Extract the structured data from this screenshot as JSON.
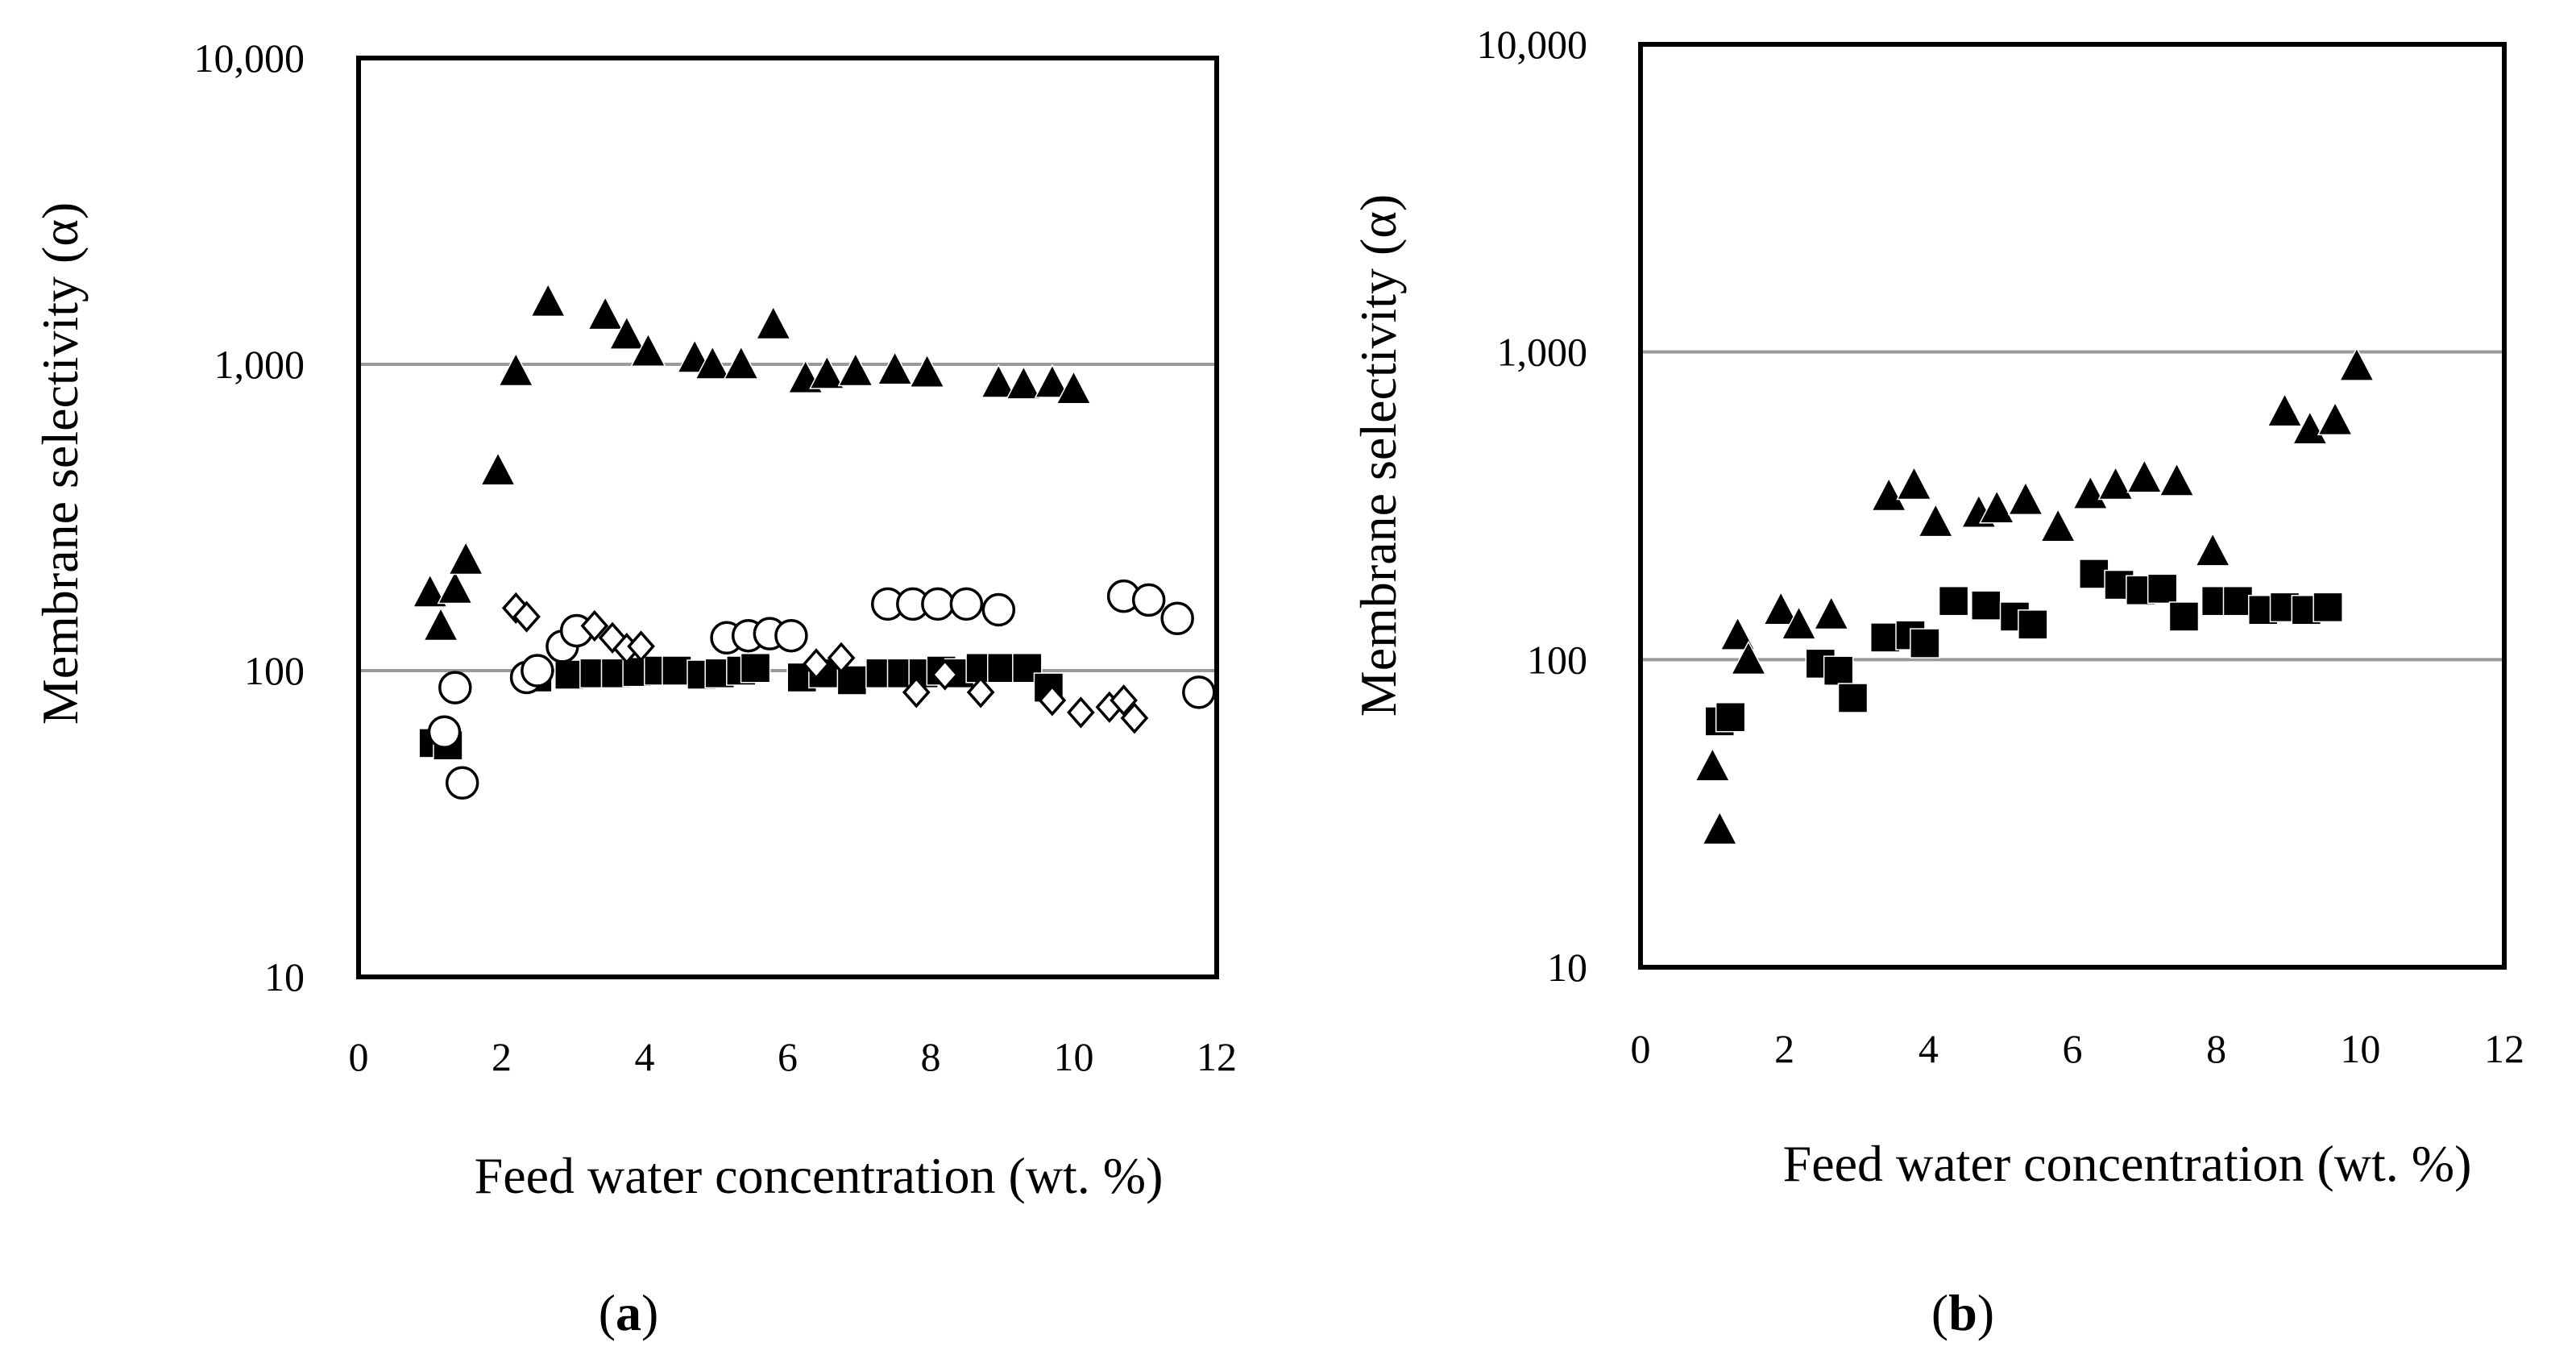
{
  "figure": {
    "background": "#ffffff",
    "gridline_color": "#9a9a9a",
    "marker_color": "#000000"
  },
  "panels": [
    {
      "id": "a",
      "label_open": "(",
      "label_letter": "a",
      "label_close": ")",
      "xlabel": "Feed water concentration (wt. %)",
      "ylabel": "Membrane selectivity (α)"
    },
    {
      "id": "b",
      "label_open": "(",
      "label_letter": "b",
      "label_close": ")",
      "xlabel": "Feed water concentration (wt. %)",
      "ylabel": "Membrane selectivity (α)"
    }
  ],
  "chart_data": [
    {
      "type": "scatter",
      "panel": "a",
      "title": "",
      "xlabel": "Feed water concentration (wt. %)",
      "ylabel": "Membrane selectivity (α)",
      "xlim": [
        0,
        12
      ],
      "ylim": [
        10,
        10000
      ],
      "yscale": "log",
      "xticks": [
        0,
        2,
        4,
        6,
        8,
        10,
        12
      ],
      "xtick_labels": [
        "0",
        "2",
        "4",
        "6",
        "8",
        "10",
        "12"
      ],
      "yticks": [
        10,
        100,
        1000,
        10000
      ],
      "ytick_labels": [
        "10",
        "100",
        "1,000",
        "10,000"
      ],
      "gridlines_y": [
        100,
        1000
      ],
      "legend": "none",
      "series": [
        {
          "name": "filled triangles",
          "marker": "triangle-filled",
          "points": [
            [
              1.0,
              180
            ],
            [
              1.15,
              140
            ],
            [
              1.35,
              185
            ],
            [
              1.5,
              230
            ],
            [
              1.95,
              450
            ],
            [
              2.2,
              950
            ],
            [
              2.65,
              1600
            ],
            [
              3.45,
              1450
            ],
            [
              3.75,
              1250
            ],
            [
              4.05,
              1100
            ],
            [
              4.7,
              1050
            ],
            [
              4.95,
              1000
            ],
            [
              5.35,
              1000
            ],
            [
              5.8,
              1350
            ],
            [
              6.25,
              900
            ],
            [
              6.55,
              930
            ],
            [
              6.95,
              950
            ],
            [
              7.5,
              960
            ],
            [
              7.95,
              940
            ],
            [
              8.95,
              870
            ],
            [
              9.3,
              860
            ],
            [
              9.7,
              870
            ],
            [
              10.0,
              830
            ]
          ]
        },
        {
          "name": "filled squares",
          "marker": "square-filled",
          "points": [
            [
              1.05,
              58
            ],
            [
              1.25,
              57
            ],
            [
              2.5,
              95
            ],
            [
              2.95,
              97
            ],
            [
              3.3,
              98
            ],
            [
              3.6,
              98
            ],
            [
              3.9,
              99
            ],
            [
              4.2,
              100
            ],
            [
              4.45,
              100
            ],
            [
              4.8,
              97
            ],
            [
              5.05,
              98
            ],
            [
              5.35,
              100
            ],
            [
              5.55,
              102
            ],
            [
              6.2,
              95
            ],
            [
              6.5,
              98
            ],
            [
              6.9,
              93
            ],
            [
              7.3,
              98
            ],
            [
              7.6,
              98
            ],
            [
              7.9,
              98
            ],
            [
              8.15,
              100
            ],
            [
              8.4,
              98
            ],
            [
              8.7,
              102
            ],
            [
              9.0,
              102
            ],
            [
              9.35,
              102
            ],
            [
              9.65,
              88
            ]
          ]
        },
        {
          "name": "open circles",
          "marker": "circle-open",
          "points": [
            [
              1.2,
              63
            ],
            [
              1.35,
              88
            ],
            [
              1.45,
              43
            ],
            [
              2.35,
              95
            ],
            [
              2.5,
              100
            ],
            [
              2.85,
              120
            ],
            [
              3.05,
              135
            ],
            [
              5.15,
              128
            ],
            [
              5.45,
              130
            ],
            [
              5.75,
              132
            ],
            [
              6.05,
              130
            ],
            [
              7.4,
              165
            ],
            [
              7.75,
              165
            ],
            [
              8.1,
              165
            ],
            [
              8.5,
              165
            ],
            [
              8.95,
              158
            ],
            [
              10.7,
              175
            ],
            [
              11.05,
              170
            ],
            [
              11.45,
              148
            ],
            [
              11.75,
              85
            ]
          ]
        },
        {
          "name": "open diamonds",
          "marker": "diamond-open",
          "points": [
            [
              2.2,
              160
            ],
            [
              2.35,
              150
            ],
            [
              3.3,
              140
            ],
            [
              3.55,
              128
            ],
            [
              3.75,
              118
            ],
            [
              3.95,
              120
            ],
            [
              6.4,
              105
            ],
            [
              6.75,
              110
            ],
            [
              7.8,
              85
            ],
            [
              8.2,
              97
            ],
            [
              8.7,
              85
            ],
            [
              9.7,
              80
            ],
            [
              10.1,
              73
            ],
            [
              10.5,
              76
            ],
            [
              10.7,
              80
            ],
            [
              10.85,
              70
            ]
          ]
        }
      ]
    },
    {
      "type": "scatter",
      "panel": "b",
      "title": "",
      "xlabel": "Feed water concentration (wt. %)",
      "ylabel": "Membrane selectivity (α)",
      "xlim": [
        0,
        12
      ],
      "ylim": [
        10,
        10000
      ],
      "yscale": "log",
      "xticks": [
        0,
        2,
        4,
        6,
        8,
        10,
        12
      ],
      "xtick_labels": [
        "0",
        "2",
        "4",
        "6",
        "8",
        "10",
        "12"
      ],
      "yticks": [
        10,
        100,
        1000,
        10000
      ],
      "ytick_labels": [
        "10",
        "100",
        "1,000",
        "10,000"
      ],
      "gridlines_y": [
        100,
        1000
      ],
      "legend": "none",
      "series": [
        {
          "name": "filled triangles",
          "marker": "triangle-filled",
          "points": [
            [
              1.0,
              45
            ],
            [
              1.1,
              28
            ],
            [
              1.35,
              120
            ],
            [
              1.5,
              100
            ],
            [
              1.95,
              145
            ],
            [
              2.2,
              130
            ],
            [
              2.65,
              140
            ],
            [
              3.45,
              340
            ],
            [
              3.8,
              370
            ],
            [
              4.1,
              280
            ],
            [
              4.7,
              300
            ],
            [
              4.95,
              310
            ],
            [
              5.35,
              330
            ],
            [
              5.8,
              270
            ],
            [
              6.25,
              345
            ],
            [
              6.6,
              370
            ],
            [
              7.0,
              390
            ],
            [
              7.45,
              380
            ],
            [
              7.95,
              225
            ],
            [
              8.95,
              640
            ],
            [
              9.3,
              560
            ],
            [
              9.65,
              600
            ],
            [
              9.95,
              900
            ]
          ]
        },
        {
          "name": "filled squares",
          "marker": "square-filled",
          "points": [
            [
              1.1,
              63
            ],
            [
              1.25,
              65
            ],
            [
              2.5,
              97
            ],
            [
              2.75,
              92
            ],
            [
              2.95,
              75
            ],
            [
              3.4,
              118
            ],
            [
              3.75,
              120
            ],
            [
              3.95,
              113
            ],
            [
              4.35,
              155
            ],
            [
              4.8,
              150
            ],
            [
              5.2,
              138
            ],
            [
              5.45,
              130
            ],
            [
              6.3,
              190
            ],
            [
              6.65,
              175
            ],
            [
              6.95,
              168
            ],
            [
              7.25,
              170
            ],
            [
              7.55,
              138
            ],
            [
              8.0,
              155
            ],
            [
              8.3,
              155
            ],
            [
              8.65,
              145
            ],
            [
              8.95,
              148
            ],
            [
              9.25,
              145
            ],
            [
              9.55,
              148
            ]
          ]
        }
      ]
    }
  ]
}
